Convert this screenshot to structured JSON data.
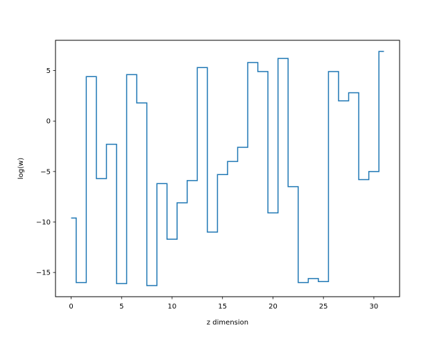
{
  "chart_data": {
    "type": "line",
    "drawstyle": "steps-mid",
    "title": "",
    "xlabel": "z dimension",
    "ylabel": "log(w)",
    "xlim": [
      -1.55,
      32.55
    ],
    "ylim": [
      -17.4,
      8.0
    ],
    "xticks": [
      0,
      5,
      10,
      15,
      20,
      25,
      30
    ],
    "yticks": [
      -15,
      -10,
      -5,
      0,
      5
    ],
    "tick_labels_x": [
      "0",
      "5",
      "10",
      "15",
      "20",
      "25",
      "30"
    ],
    "tick_labels_y": [
      "−15",
      "−10",
      "−5",
      "0",
      "5"
    ],
    "grid": false,
    "legend": "none",
    "series": [
      {
        "color": "#1f77b4",
        "x": [
          0,
          1,
          2,
          3,
          4,
          5,
          6,
          7,
          8,
          9,
          10,
          11,
          12,
          13,
          14,
          15,
          16,
          17,
          18,
          19,
          20,
          21,
          22,
          23,
          24,
          25,
          26,
          27,
          28,
          29,
          30,
          31
        ],
        "y": [
          -9.6,
          -16.0,
          4.4,
          -5.7,
          -2.3,
          -16.1,
          4.6,
          1.8,
          -16.3,
          -6.2,
          -11.7,
          -8.1,
          -5.9,
          5.3,
          -11.0,
          -5.3,
          -4.0,
          -2.6,
          5.8,
          4.9,
          -9.1,
          6.2,
          -6.5,
          -16.0,
          -15.6,
          -15.9,
          4.9,
          2.0,
          2.8,
          -5.8,
          -5.0,
          6.9
        ]
      }
    ]
  }
}
